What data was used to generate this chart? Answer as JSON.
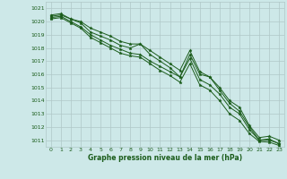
{
  "title": "Graphe pression niveau de la mer (hPa)",
  "background_color": "#cde8e8",
  "grid_color": "#b0c8c8",
  "line_color": "#1a5c1a",
  "xlim": [
    -0.5,
    23.5
  ],
  "ylim": [
    1010.5,
    1021.5
  ],
  "yticks": [
    1011,
    1012,
    1013,
    1014,
    1015,
    1016,
    1017,
    1018,
    1019,
    1020,
    1021
  ],
  "xticks": [
    0,
    1,
    2,
    3,
    4,
    5,
    6,
    7,
    8,
    9,
    10,
    11,
    12,
    13,
    14,
    15,
    16,
    17,
    18,
    19,
    20,
    21,
    22,
    23
  ],
  "series": [
    [
      1020.4,
      1020.5,
      1020.2,
      1020.0,
      1019.5,
      1019.2,
      1018.9,
      1018.5,
      1018.3,
      1018.3,
      1017.5,
      1017.0,
      1016.5,
      1015.8,
      1017.5,
      1016.0,
      1015.8,
      1014.8,
      1013.8,
      1013.2,
      1012.0,
      1011.0,
      1011.1,
      1010.7
    ],
    [
      1020.5,
      1020.6,
      1020.2,
      1019.9,
      1019.2,
      1018.9,
      1018.6,
      1018.2,
      1018.0,
      1018.3,
      1017.8,
      1017.3,
      1016.8,
      1016.3,
      1017.8,
      1016.2,
      1015.8,
      1015.0,
      1014.0,
      1013.5,
      1012.1,
      1011.2,
      1011.3,
      1011.0
    ],
    [
      1020.3,
      1020.4,
      1020.0,
      1019.6,
      1019.0,
      1018.6,
      1018.2,
      1017.9,
      1017.6,
      1017.5,
      1017.0,
      1016.6,
      1016.2,
      1015.8,
      1017.2,
      1015.6,
      1015.2,
      1014.5,
      1013.5,
      1013.0,
      1011.8,
      1011.0,
      1011.0,
      1010.75
    ],
    [
      1020.2,
      1020.3,
      1019.9,
      1019.5,
      1018.8,
      1018.4,
      1018.0,
      1017.6,
      1017.4,
      1017.3,
      1016.8,
      1016.3,
      1015.9,
      1015.4,
      1016.8,
      1015.2,
      1014.8,
      1014.0,
      1013.0,
      1012.5,
      1011.5,
      1010.9,
      1010.85,
      1010.6
    ]
  ]
}
